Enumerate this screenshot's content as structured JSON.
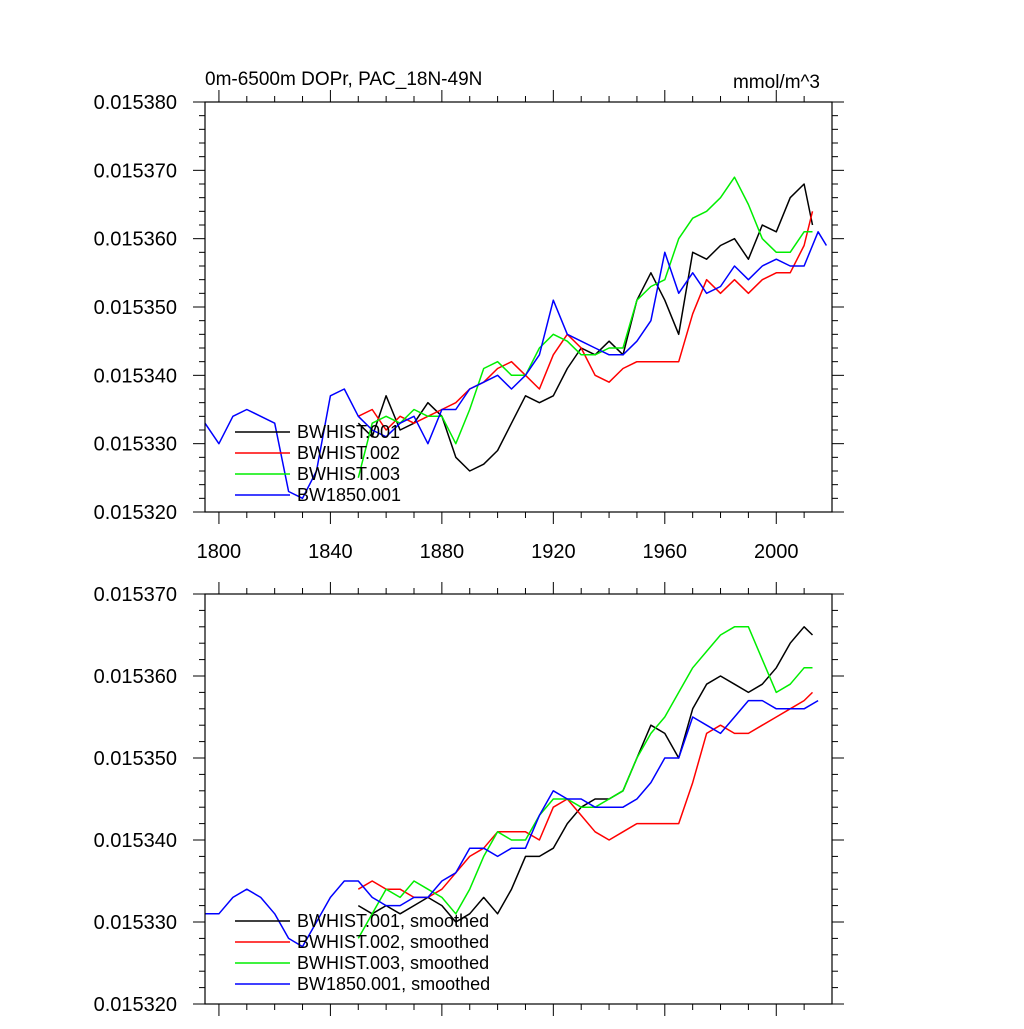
{
  "chart_data": [
    {
      "type": "line",
      "title": "0m-6500m DOPr, PAC_18N-49N",
      "units": "mmol/m^3",
      "xlim": [
        1795,
        2020
      ],
      "ylim": [
        0.01532,
        0.01538
      ],
      "x_ticks": [
        1800,
        1840,
        1880,
        1920,
        1960,
        2000
      ],
      "x_tick_labels": [
        "1800",
        "1840",
        "1880",
        "1920",
        "1960",
        "2000"
      ],
      "y_ticks": [
        0.01532,
        0.01533,
        0.01534,
        0.01535,
        0.01536,
        0.01537,
        0.01538
      ],
      "y_tick_labels": [
        "0.015320",
        "0.015330",
        "0.015340",
        "0.015350",
        "0.015360",
        "0.015370",
        "0.015380"
      ],
      "legend_position": "bottom-left",
      "series": [
        {
          "name": "BWHIST.001",
          "color": "#000000",
          "x": [
            1850,
            1855,
            1860,
            1865,
            1870,
            1875,
            1880,
            1885,
            1890,
            1895,
            1900,
            1905,
            1910,
            1915,
            1920,
            1925,
            1930,
            1935,
            1940,
            1945,
            1950,
            1955,
            1960,
            1965,
            1970,
            1975,
            1980,
            1985,
            1990,
            1995,
            2000,
            2005,
            2010,
            2013
          ],
          "y": [
            0.015333,
            0.015331,
            0.015337,
            0.015332,
            0.015333,
            0.015336,
            0.015334,
            0.015328,
            0.015326,
            0.015327,
            0.015329,
            0.015333,
            0.015337,
            0.015336,
            0.015337,
            0.015341,
            0.015344,
            0.015343,
            0.015345,
            0.015343,
            0.015351,
            0.015355,
            0.015351,
            0.015346,
            0.015358,
            0.015357,
            0.015359,
            0.01536,
            0.015357,
            0.015362,
            0.015361,
            0.015366,
            0.015368,
            0.015362
          ]
        },
        {
          "name": "BWHIST.002",
          "color": "#ff0000",
          "x": [
            1850,
            1855,
            1860,
            1865,
            1870,
            1875,
            1880,
            1885,
            1890,
            1895,
            1900,
            1905,
            1910,
            1915,
            1920,
            1925,
            1930,
            1935,
            1940,
            1945,
            1950,
            1955,
            1960,
            1965,
            1970,
            1975,
            1980,
            1985,
            1990,
            1995,
            2000,
            2005,
            2010,
            2013
          ],
          "y": [
            0.015334,
            0.015335,
            0.015332,
            0.015334,
            0.015333,
            0.015334,
            0.015335,
            0.015336,
            0.015338,
            0.015339,
            0.015341,
            0.015342,
            0.01534,
            0.015338,
            0.015343,
            0.015346,
            0.015344,
            0.01534,
            0.015339,
            0.015341,
            0.015342,
            0.015342,
            0.015342,
            0.015342,
            0.015349,
            0.015354,
            0.015352,
            0.015354,
            0.015352,
            0.015354,
            0.015355,
            0.015355,
            0.015359,
            0.015364
          ]
        },
        {
          "name": "BWHIST.003",
          "color": "#00ee00",
          "x": [
            1850,
            1855,
            1860,
            1865,
            1870,
            1875,
            1880,
            1885,
            1890,
            1895,
            1900,
            1905,
            1910,
            1915,
            1920,
            1925,
            1930,
            1935,
            1940,
            1945,
            1950,
            1955,
            1960,
            1965,
            1970,
            1975,
            1980,
            1985,
            1990,
            1995,
            2000,
            2005,
            2010,
            2013
          ],
          "y": [
            0.015325,
            0.015333,
            0.015334,
            0.015333,
            0.015335,
            0.015334,
            0.015334,
            0.01533,
            0.015335,
            0.015341,
            0.015342,
            0.01534,
            0.01534,
            0.015344,
            0.015346,
            0.015345,
            0.015343,
            0.015343,
            0.015344,
            0.015344,
            0.015351,
            0.015353,
            0.015354,
            0.01536,
            0.015363,
            0.015364,
            0.015366,
            0.015369,
            0.015365,
            0.01536,
            0.015358,
            0.015358,
            0.015361,
            0.015361
          ]
        },
        {
          "name": "BW1850.001",
          "color": "#0000ff",
          "x": [
            1795,
            1800,
            1805,
            1810,
            1815,
            1820,
            1825,
            1830,
            1835,
            1840,
            1845,
            1850,
            1855,
            1860,
            1865,
            1870,
            1875,
            1880,
            1885,
            1890,
            1895,
            1900,
            1905,
            1910,
            1915,
            1920,
            1925,
            1930,
            1935,
            1940,
            1945,
            1950,
            1955,
            1960,
            1965,
            1970,
            1975,
            1980,
            1985,
            1990,
            1995,
            2000,
            2005,
            2010,
            2015,
            2018
          ],
          "y": [
            0.015333,
            0.01533,
            0.015334,
            0.015335,
            0.015334,
            0.015333,
            0.015323,
            0.015322,
            0.015326,
            0.015337,
            0.015338,
            0.015334,
            0.015332,
            0.015331,
            0.015333,
            0.015334,
            0.01533,
            0.015335,
            0.015335,
            0.015338,
            0.015339,
            0.01534,
            0.015338,
            0.01534,
            0.015343,
            0.015351,
            0.015346,
            0.015345,
            0.015344,
            0.015343,
            0.015343,
            0.015345,
            0.015348,
            0.015358,
            0.015352,
            0.015355,
            0.015352,
            0.015353,
            0.015356,
            0.015354,
            0.015356,
            0.015357,
            0.015356,
            0.015356,
            0.015361,
            0.015359
          ]
        }
      ]
    },
    {
      "type": "line",
      "title": "",
      "units": "",
      "xlim": [
        1795,
        2020
      ],
      "ylim": [
        0.01532,
        0.01537
      ],
      "x_ticks": [
        1800,
        1840,
        1880,
        1920,
        1960,
        2000
      ],
      "x_tick_labels": [],
      "y_ticks": [
        0.01532,
        0.01533,
        0.01534,
        0.01535,
        0.01536,
        0.01537
      ],
      "y_tick_labels": [
        "0.015320",
        "0.015330",
        "0.015340",
        "0.015350",
        "0.015360",
        "0.015370"
      ],
      "legend_position": "bottom-left",
      "series": [
        {
          "name": "BWHIST.001, smoothed",
          "color": "#000000",
          "x": [
            1850,
            1855,
            1860,
            1865,
            1870,
            1875,
            1880,
            1885,
            1890,
            1895,
            1900,
            1905,
            1910,
            1915,
            1920,
            1925,
            1930,
            1935,
            1940,
            1945,
            1950,
            1955,
            1960,
            1965,
            1970,
            1975,
            1980,
            1985,
            1990,
            1995,
            2000,
            2005,
            2010,
            2013
          ],
          "y": [
            0.015332,
            0.015331,
            0.015332,
            0.015331,
            0.015332,
            0.015333,
            0.015332,
            0.01533,
            0.015331,
            0.015333,
            0.015331,
            0.015334,
            0.015338,
            0.015338,
            0.015339,
            0.015342,
            0.015344,
            0.015345,
            0.015345,
            0.015346,
            0.01535,
            0.015354,
            0.015353,
            0.01535,
            0.015356,
            0.015359,
            0.01536,
            0.015359,
            0.015358,
            0.015359,
            0.015361,
            0.015364,
            0.015366,
            0.015365
          ]
        },
        {
          "name": "BWHIST.002, smoothed",
          "color": "#ff0000",
          "x": [
            1850,
            1855,
            1860,
            1865,
            1870,
            1875,
            1880,
            1885,
            1890,
            1895,
            1900,
            1905,
            1910,
            1915,
            1920,
            1925,
            1930,
            1935,
            1940,
            1945,
            1950,
            1955,
            1960,
            1965,
            1970,
            1975,
            1980,
            1985,
            1990,
            1995,
            2000,
            2005,
            2010,
            2013
          ],
          "y": [
            0.015334,
            0.015335,
            0.015334,
            0.015334,
            0.015333,
            0.015333,
            0.015334,
            0.015336,
            0.015338,
            0.015339,
            0.015341,
            0.015341,
            0.015341,
            0.01534,
            0.015344,
            0.015345,
            0.015343,
            0.015341,
            0.01534,
            0.015341,
            0.015342,
            0.015342,
            0.015342,
            0.015342,
            0.015347,
            0.015353,
            0.015354,
            0.015353,
            0.015353,
            0.015354,
            0.015355,
            0.015356,
            0.015357,
            0.015358
          ]
        },
        {
          "name": "BWHIST.003, smoothed",
          "color": "#00ee00",
          "x": [
            1850,
            1855,
            1860,
            1865,
            1870,
            1875,
            1880,
            1885,
            1890,
            1895,
            1900,
            1905,
            1910,
            1915,
            1920,
            1925,
            1930,
            1935,
            1940,
            1945,
            1950,
            1955,
            1960,
            1965,
            1970,
            1975,
            1980,
            1985,
            1990,
            1995,
            2000,
            2005,
            2010,
            2013
          ],
          "y": [
            0.015328,
            0.015331,
            0.015334,
            0.015333,
            0.015335,
            0.015334,
            0.015333,
            0.015331,
            0.015334,
            0.015338,
            0.015341,
            0.01534,
            0.01534,
            0.015343,
            0.015345,
            0.015345,
            0.015344,
            0.015344,
            0.015345,
            0.015346,
            0.01535,
            0.015353,
            0.015355,
            0.015358,
            0.015361,
            0.015363,
            0.015365,
            0.015366,
            0.015366,
            0.015362,
            0.015358,
            0.015359,
            0.015361,
            0.015361
          ]
        },
        {
          "name": "BW1850.001, smoothed",
          "color": "#0000ff",
          "x": [
            1795,
            1800,
            1805,
            1810,
            1815,
            1820,
            1825,
            1830,
            1835,
            1840,
            1845,
            1850,
            1855,
            1860,
            1865,
            1870,
            1875,
            1880,
            1885,
            1890,
            1895,
            1900,
            1905,
            1910,
            1915,
            1920,
            1925,
            1930,
            1935,
            1940,
            1945,
            1950,
            1955,
            1960,
            1965,
            1970,
            1975,
            1980,
            1985,
            1990,
            1995,
            2000,
            2005,
            2010,
            2015
          ],
          "y": [
            0.015331,
            0.015331,
            0.015333,
            0.015334,
            0.015333,
            0.015331,
            0.015328,
            0.015327,
            0.01533,
            0.015333,
            0.015335,
            0.015335,
            0.015333,
            0.015332,
            0.015332,
            0.015333,
            0.015333,
            0.015335,
            0.015336,
            0.015339,
            0.015339,
            0.015338,
            0.015339,
            0.015339,
            0.015343,
            0.015346,
            0.015345,
            0.015345,
            0.015344,
            0.015344,
            0.015344,
            0.015345,
            0.015347,
            0.01535,
            0.01535,
            0.015355,
            0.015354,
            0.015353,
            0.015355,
            0.015357,
            0.015357,
            0.015356,
            0.015356,
            0.015356,
            0.015357
          ]
        }
      ]
    }
  ]
}
